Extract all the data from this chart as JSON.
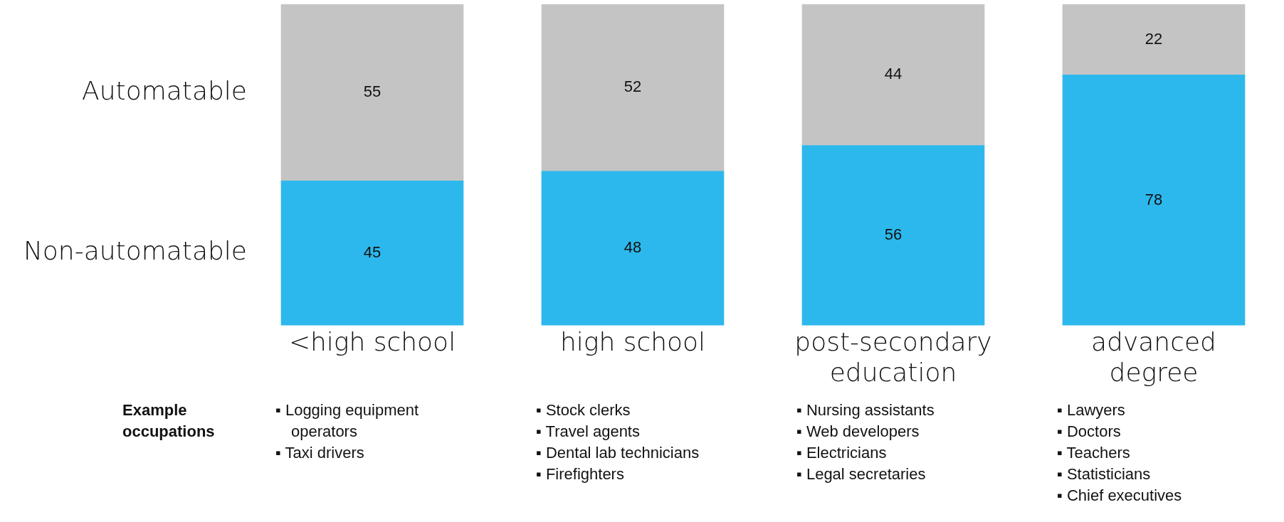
{
  "chart_data": {
    "type": "bar",
    "stacked": true,
    "categories": [
      "<high school",
      "high school",
      "post-secondary education",
      "advanced degree"
    ],
    "series": [
      {
        "name": "Non-automatable",
        "color": "#2cb8ec",
        "values": [
          45,
          48,
          56,
          78
        ]
      },
      {
        "name": "Automatable",
        "color": "#c4c4c4",
        "values": [
          55,
          52,
          44,
          22
        ]
      }
    ],
    "ylim": [
      0,
      100
    ],
    "tick_labels": "x",
    "grid": false,
    "legend": false,
    "data_labels": true,
    "annotations": [
      "Example occupations",
      "▪ Logging equipment operators\n▪ Taxi drivers",
      "▪ Stock clerks\n▪ Travel agents\n▪ Dental lab technicians\n▪ Firefighters",
      "▪ Nursing assistants\n▪ Web developers\n▪ Electricians\n▪ Legal secretaries",
      "▪ Lawyers\n▪ Doctors\n▪ Teachers\n▪ Statisticians\n▪ Chief executives"
    ]
  }
}
